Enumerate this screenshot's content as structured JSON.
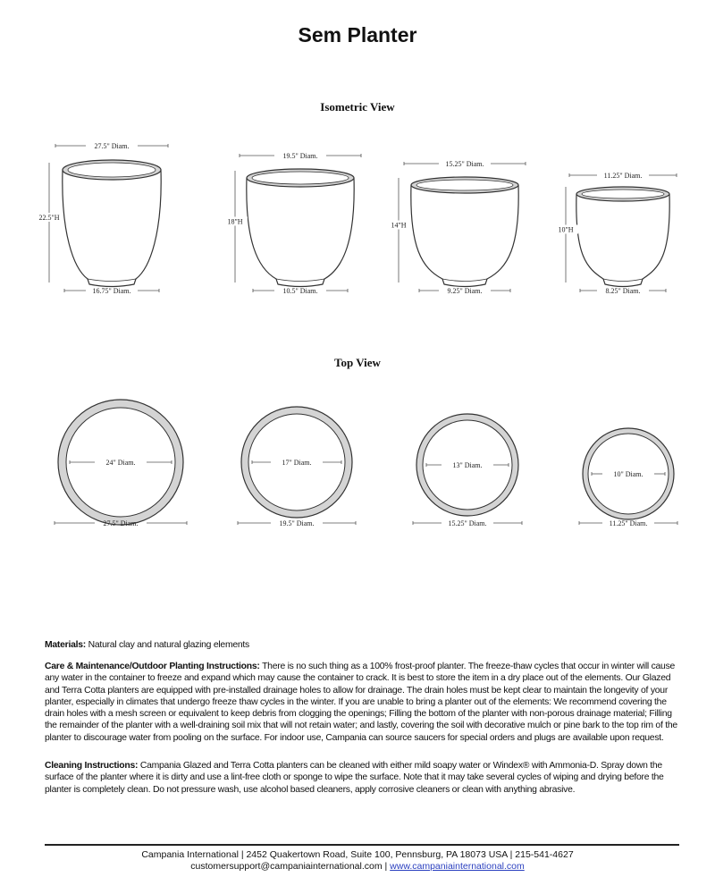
{
  "title": "Sem Planter",
  "isometric": {
    "heading": "Isometric View",
    "planters": [
      {
        "top": "27.5\" Diam.",
        "height": "22.5\"H",
        "base": "16.75\" Diam."
      },
      {
        "top": "19.5\" Diam.",
        "height": "18\"H",
        "base": "10.5\" Diam."
      },
      {
        "top": "15.25\" Diam.",
        "height": "14\"H",
        "base": "9.25\" Diam."
      },
      {
        "top": "11.25\" Diam.",
        "height": "10\"H",
        "base": "8.25\" Diam."
      }
    ]
  },
  "topview": {
    "heading": "Top View",
    "planters": [
      {
        "inner": "24\" Diam.",
        "outer": "27.5\" Diam."
      },
      {
        "inner": "17\" Diam.",
        "outer": "19.5\" Diam."
      },
      {
        "inner": "13\" Diam.",
        "outer": "15.25\" Diam."
      },
      {
        "inner": "10\" Diam.",
        "outer": "11.25\" Diam."
      }
    ]
  },
  "colors": {
    "rim_fill": "#d4d4d4",
    "line": "#333333",
    "link": "#2a3fbf"
  },
  "materials": {
    "label": "Materials:",
    "text": " Natural clay and natural glazing elements"
  },
  "care": {
    "label": "Care & Maintenance/Outdoor Planting Instructions:",
    "text": " There is no such thing as a 100% frost-proof planter. The freeze-thaw cycles that occur in winter will cause any water in the container to freeze and expand which may cause the container to crack. It is best to store the item in a dry place out of the elements. Our Glazed and Terra Cotta planters are equipped with pre-installed drainage holes to allow for drainage. The drain holes must be kept clear to maintain the longevity of your planter, especially in climates that undergo freeze thaw cycles in the winter. If you are unable to bring a planter out of the elements: We recommend covering the drain holes with a mesh screen or equivalent to keep debris from clogging the openings; Filling the bottom of the planter with non-porous drainage material; Filling the remainder of the planter with a well-draining soil mix that will not retain water; and lastly, covering the soil with decorative mulch or pine bark to the top rim of the planter to discourage water from pooling on the surface. For indoor use, Campania can source saucers for special orders and plugs are available upon request."
  },
  "cleaning": {
    "label": "Cleaning Instructions:",
    "text": " Campania Glazed and Terra Cotta planters can be cleaned with either mild soapy water or Windex® with Ammonia-D. Spray down the surface of the planter where it is dirty and use a lint-free cloth or sponge to wipe the surface. Note that it may take several cycles of wiping and drying before the planter is completely clean. Do not pressure wash, use alcohol based cleaners, apply corrosive cleaners or clean with anything abrasive."
  },
  "footer": {
    "address": "Campania International | 2452 Quakertown Road, Suite 100, Pennsburg, PA 18073 USA | 215-541-4627",
    "email": "customersupport@campaniainternational.com",
    "separator": " | ",
    "website": "www.campaniainternational.com"
  }
}
